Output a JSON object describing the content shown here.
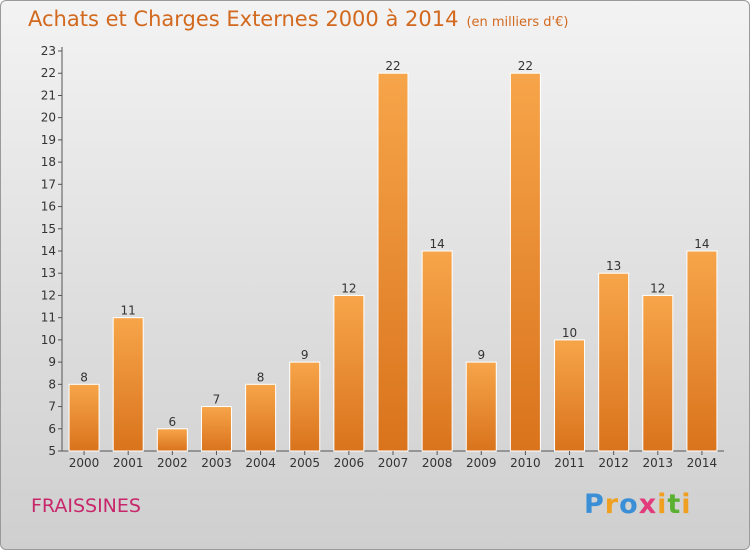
{
  "chart_data": {
    "type": "bar",
    "title": "Achats et Charges Externes 2000 à 2014",
    "subtitle": "(en milliers d'€)",
    "categories": [
      "2000",
      "2001",
      "2002",
      "2003",
      "2004",
      "2005",
      "2006",
      "2007",
      "2008",
      "2009",
      "2010",
      "2011",
      "2012",
      "2013",
      "2014"
    ],
    "values": [
      8,
      11,
      6,
      7,
      8,
      9,
      12,
      22,
      14,
      9,
      22,
      10,
      13,
      12,
      14
    ],
    "ylim": [
      5,
      23
    ],
    "yticks": [
      5,
      6,
      7,
      8,
      9,
      10,
      11,
      12,
      13,
      14,
      15,
      16,
      17,
      18,
      19,
      20,
      21,
      22,
      23
    ],
    "xlabel": "",
    "ylabel": "",
    "grid": false,
    "bar_color_light": "#f7a54a",
    "bar_color_dark": "#d9731c"
  },
  "footer": {
    "place": "FRAISSINES",
    "logo_letters": [
      "P",
      "r",
      "o",
      "x",
      "i",
      "t",
      "i"
    ],
    "logo_colors": [
      "#3a8fd6",
      "#f0a020",
      "#3a8fd6",
      "#e23a7a",
      "#f0a020",
      "#5ab030",
      "#f0a020"
    ]
  }
}
